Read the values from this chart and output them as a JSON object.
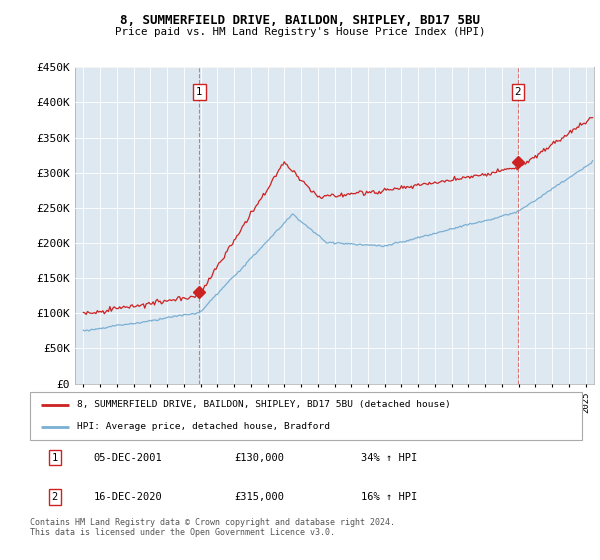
{
  "title_line1": "8, SUMMERFIELD DRIVE, BAILDON, SHIPLEY, BD17 5BU",
  "title_line2": "Price paid vs. HM Land Registry's House Price Index (HPI)",
  "background_color": "#ffffff",
  "plot_bg_color": "#dde8f0",
  "grid_color": "#ffffff",
  "sale1_date_num": 2001.92,
  "sale1_price": 130000,
  "sale1_label": "1",
  "sale2_date_num": 2020.96,
  "sale2_price": 315000,
  "sale2_label": "2",
  "legend_label_red": "8, SUMMERFIELD DRIVE, BAILDON, SHIPLEY, BD17 5BU (detached house)",
  "legend_label_blue": "HPI: Average price, detached house, Bradford",
  "table_row1": [
    "1",
    "05-DEC-2001",
    "£130,000",
    "34% ↑ HPI"
  ],
  "table_row2": [
    "2",
    "16-DEC-2020",
    "£315,000",
    "16% ↑ HPI"
  ],
  "footnote": "Contains HM Land Registry data © Crown copyright and database right 2024.\nThis data is licensed under the Open Government Licence v3.0.",
  "red_color": "#cc2222",
  "blue_color": "#7aafd4",
  "vline_color": "#dd6666",
  "ylim_min": 0,
  "ylim_max": 450000,
  "xlim_min": 1994.5,
  "xlim_max": 2025.5
}
